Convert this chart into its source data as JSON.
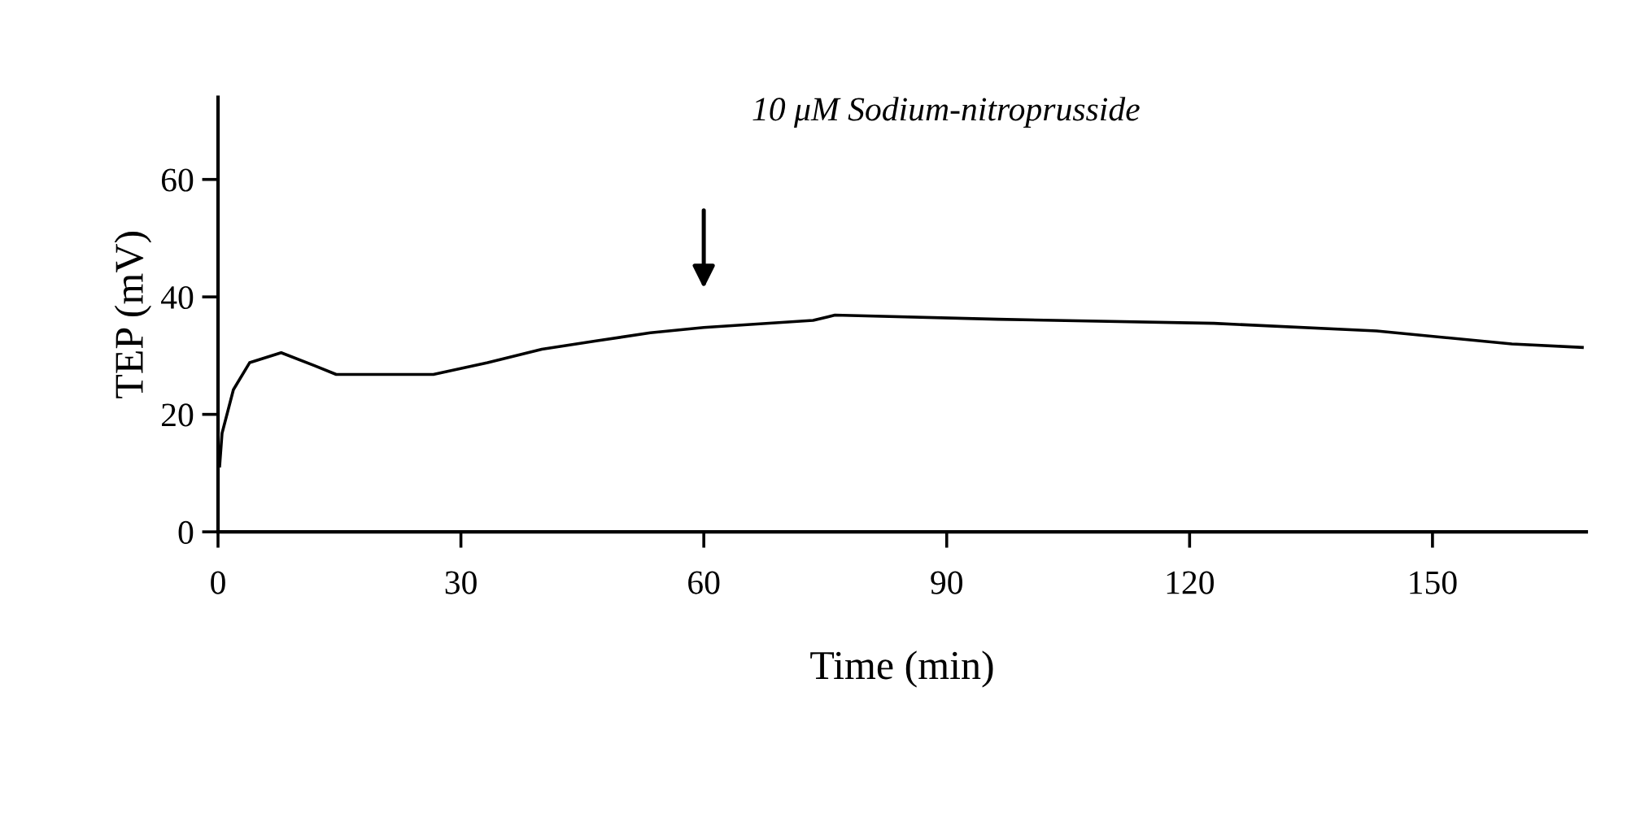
{
  "chart_data": {
    "type": "line",
    "xlabel": "Time (min)",
    "ylabel": "TEP (mV)",
    "x": [
      0.2,
      0.5,
      1.9,
      3.9,
      7.8,
      11.9,
      14.6,
      26.6,
      33.3,
      40.0,
      46.7,
      53.4,
      60.0,
      73.5,
      76.2,
      96.3,
      123.0,
      143.1,
      159.8,
      168.5
    ],
    "values": [
      11.2,
      16.8,
      24.2,
      28.8,
      30.5,
      28.3,
      26.8,
      26.8,
      28.8,
      31.1,
      32.5,
      33.9,
      34.8,
      36.0,
      36.9,
      36.2,
      35.5,
      34.2,
      32.0,
      31.4
    ],
    "color": "#000000",
    "xlim": [
      0,
      169
    ],
    "ylim": [
      0,
      74
    ],
    "xticks": [
      0,
      30,
      60,
      90,
      120,
      150
    ],
    "yticks": [
      0,
      20,
      40,
      60
    ],
    "grid": false,
    "legend": false,
    "marker": "none",
    "line_style": "solid",
    "annotations": [
      "10 μM Sodium-nitroprusside"
    ]
  }
}
